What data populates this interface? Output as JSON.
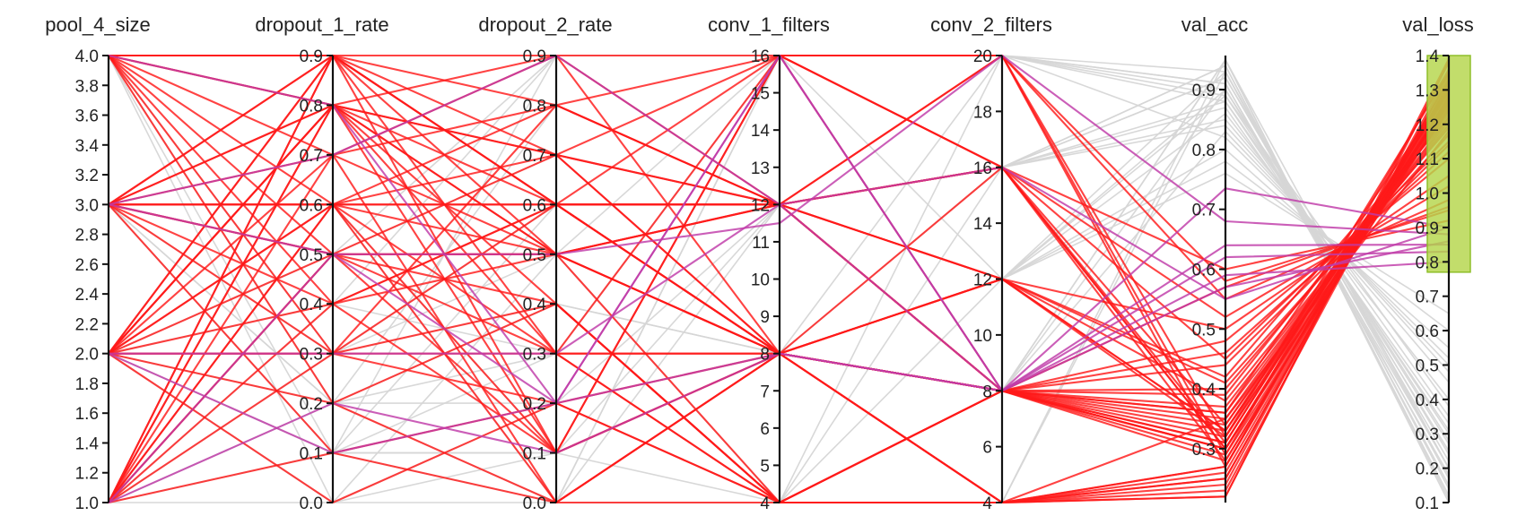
{
  "chart_data": {
    "type": "parallel_coordinates",
    "brushed_axis": "val_loss",
    "brush_range": [
      0.77,
      1.4
    ],
    "colors": {
      "inactive": "#d6d6d6",
      "highlight_red": "#ff1a1a",
      "highlight_magenta": "#c03aa8",
      "brush_fill": "#b5d64a",
      "brush_stroke": "#8fbf2a",
      "axis": "#111111"
    },
    "axes": [
      {
        "name": "pool_4_size",
        "range": [
          1.0,
          4.0
        ],
        "ticks": [
          "1.0",
          "1.2",
          "1.4",
          "1.6",
          "1.8",
          "2.0",
          "2.2",
          "2.4",
          "2.6",
          "2.8",
          "3.0",
          "3.2",
          "3.4",
          "3.6",
          "3.8",
          "4.0"
        ]
      },
      {
        "name": "dropout_1_rate",
        "range": [
          0.0,
          0.9
        ],
        "ticks": [
          "0.0",
          "0.1",
          "0.2",
          "0.3",
          "0.4",
          "0.5",
          "0.6",
          "0.7",
          "0.8",
          "0.9"
        ]
      },
      {
        "name": "dropout_2_rate",
        "range": [
          0.0,
          0.9
        ],
        "ticks": [
          "0.0",
          "0.1",
          "0.2",
          "0.3",
          "0.4",
          "0.5",
          "0.6",
          "0.7",
          "0.8",
          "0.9"
        ]
      },
      {
        "name": "conv_1_filters",
        "range": [
          4,
          16
        ],
        "ticks": [
          "4",
          "5",
          "6",
          "7",
          "8",
          "9",
          "10",
          "11",
          "12",
          "13",
          "14",
          "15",
          "16"
        ]
      },
      {
        "name": "conv_2_filters",
        "range": [
          4,
          20
        ],
        "ticks": [
          "4",
          "6",
          "8",
          "10",
          "12",
          "14",
          "16",
          "18",
          "20"
        ]
      },
      {
        "name": "val_acc",
        "range": [
          0.21,
          0.957
        ],
        "ticks": [
          "0.3",
          "0.4",
          "0.5",
          "0.6",
          "0.7",
          "0.8",
          "0.9"
        ]
      },
      {
        "name": "val_loss",
        "range": [
          0.1,
          1.4
        ],
        "ticks": [
          "0.1",
          "0.2",
          "0.3",
          "0.4",
          "0.5",
          "0.6",
          "0.7",
          "0.8",
          "0.9",
          "1.0",
          "1.1",
          "1.2",
          "1.3",
          "1.4"
        ]
      }
    ],
    "lines": [
      {
        "values": [
          4,
          0.8,
          0.6,
          8,
          8,
          0.36,
          1.3
        ]
      },
      {
        "values": [
          4,
          0.6,
          0.5,
          12,
          16,
          0.28,
          1.28
        ]
      },
      {
        "values": [
          4,
          0.9,
          0.1,
          16,
          20,
          0.32,
          1.35
        ]
      },
      {
        "values": [
          4,
          0.5,
          0.3,
          4,
          4,
          0.25,
          1.32
        ]
      },
      {
        "values": [
          4,
          0.8,
          0.7,
          8,
          12,
          0.42,
          1.22
        ]
      },
      {
        "values": [
          4,
          0.2,
          0.4,
          4,
          8,
          0.3,
          1.25
        ]
      },
      {
        "values": [
          4,
          0.7,
          0.0,
          8,
          4,
          0.22,
          1.38
        ]
      },
      {
        "values": [
          4,
          0.3,
          0.8,
          12,
          8,
          0.35,
          1.18
        ]
      },
      {
        "values": [
          4,
          0.9,
          0.6,
          16,
          16,
          0.31,
          1.3
        ]
      },
      {
        "values": [
          3,
          0.6,
          0.6,
          12,
          12,
          0.38,
          1.2
        ]
      },
      {
        "values": [
          3,
          0.9,
          0.5,
          8,
          8,
          0.3,
          1.27
        ]
      },
      {
        "values": [
          3,
          0.8,
          0.3,
          4,
          4,
          0.27,
          1.33
        ]
      },
      {
        "values": [
          3,
          0.5,
          0.7,
          12,
          16,
          0.45,
          1.15
        ]
      },
      {
        "values": [
          3,
          0.4,
          0.1,
          8,
          8,
          0.33,
          1.29
        ]
      },
      {
        "values": [
          3,
          0.7,
          0.9,
          16,
          20,
          0.58,
          0.95
        ]
      },
      {
        "values": [
          3,
          0.3,
          0.4,
          4,
          8,
          0.29,
          1.26
        ]
      },
      {
        "values": [
          3,
          0.1,
          0.2,
          8,
          4,
          0.24,
          1.35
        ]
      },
      {
        "values": [
          3,
          0.6,
          0.8,
          12,
          12,
          0.5,
          1.05
        ]
      },
      {
        "values": [
          3,
          0.8,
          0.5,
          8,
          8,
          0.37,
          1.21
        ]
      },
      {
        "values": [
          2,
          0.9,
          0.6,
          12,
          16,
          0.34,
          1.24
        ]
      },
      {
        "values": [
          2,
          0.8,
          0.7,
          8,
          8,
          0.4,
          1.19
        ]
      },
      {
        "values": [
          2,
          0.7,
          0.5,
          4,
          4,
          0.26,
          1.31
        ]
      },
      {
        "values": [
          2,
          0.6,
          0.3,
          8,
          12,
          0.32,
          1.27
        ]
      },
      {
        "values": [
          2,
          0.5,
          0.1,
          16,
          20,
          0.29,
          1.36
        ]
      },
      {
        "values": [
          2,
          0.3,
          0.3,
          8,
          8,
          0.39,
          1.23
        ]
      },
      {
        "values": [
          2,
          0.4,
          0.6,
          12,
          8,
          0.48,
          1.1
        ]
      },
      {
        "values": [
          2,
          0.0,
          0.2,
          4,
          4,
          0.23,
          1.34
        ]
      },
      {
        "values": [
          2,
          0.2,
          0.0,
          8,
          8,
          0.31,
          1.3
        ]
      },
      {
        "values": [
          2,
          0.9,
          0.8,
          12,
          16,
          0.6,
          0.92
        ]
      },
      {
        "values": [
          2,
          0.8,
          0.4,
          4,
          8,
          0.28,
          1.29
        ]
      },
      {
        "values": [
          1,
          0.9,
          0.6,
          8,
          8,
          0.36,
          1.22
        ]
      },
      {
        "values": [
          1,
          0.8,
          0.5,
          12,
          12,
          0.33,
          1.25
        ]
      },
      {
        "values": [
          1,
          0.7,
          0.8,
          16,
          16,
          0.52,
          1.02
        ]
      },
      {
        "values": [
          1,
          0.6,
          0.1,
          8,
          4,
          0.27,
          1.33
        ]
      },
      {
        "values": [
          1,
          0.5,
          0.4,
          4,
          8,
          0.3,
          1.28
        ]
      },
      {
        "values": [
          1,
          0.4,
          0.6,
          8,
          12,
          0.41,
          1.17
        ]
      },
      {
        "values": [
          1,
          0.8,
          0.9,
          12,
          20,
          0.55,
          0.98
        ]
      },
      {
        "values": [
          1,
          0.3,
          0.2,
          4,
          4,
          0.25,
          1.32
        ]
      },
      {
        "values": [
          1,
          0.1,
          0.0,
          8,
          8,
          0.34,
          1.26
        ]
      },
      {
        "values": [
          1,
          0.9,
          0.3,
          16,
          16,
          0.3,
          1.3
        ]
      },
      {
        "values": [
          4,
          0.9,
          0.7,
          12,
          8,
          0.44,
          1.14
        ]
      },
      {
        "values": [
          3,
          0.9,
          0.9,
          8,
          8,
          0.57,
          0.96
        ]
      },
      {
        "values": [
          2,
          0.6,
          0.6,
          8,
          4,
          0.35,
          1.24
        ]
      },
      {
        "values": [
          1,
          0.5,
          0.5,
          12,
          8,
          0.32,
          1.27
        ]
      },
      {
        "values": [
          3,
          0.6,
          0.0,
          4,
          4,
          0.22,
          1.39
        ]
      },
      {
        "values": [
          2,
          0.8,
          0.1,
          8,
          8,
          0.31,
          1.31
        ]
      },
      {
        "values": [
          1,
          0.6,
          0.7,
          16,
          8,
          0.46,
          1.12
        ]
      },
      {
        "values": [
          4,
          0.4,
          0.5,
          8,
          16,
          0.3,
          1.28
        ]
      },
      {
        "values": [
          2,
          0.3,
          0.6,
          12,
          20,
          0.27,
          1.3
        ]
      },
      {
        "values": [
          3,
          0.5,
          0.5,
          8,
          12,
          0.33,
          1.26
        ]
      },
      {
        "values": [
          4,
          0.8,
          0.2,
          16,
          8,
          0.735,
          0.9
        ]
      },
      {
        "values": [
          2,
          0.1,
          0.2,
          8,
          8,
          0.62,
          0.83
        ]
      },
      {
        "values": [
          1,
          0.2,
          0.1,
          8,
          8,
          0.57,
          0.86
        ]
      },
      {
        "values": [
          3,
          0.5,
          0.5,
          11.5,
          20,
          0.68,
          0.88
        ]
      },
      {
        "values": [
          1,
          0.5,
          0.2,
          16,
          8,
          0.59,
          0.8
        ]
      },
      {
        "values": [
          2,
          0.3,
          0.3,
          12,
          8,
          0.64,
          0.85
        ]
      },
      {
        "values": [
          3,
          0.7,
          0.9,
          12,
          16,
          0.55,
          0.9
        ]
      },
      {
        "values": [
          2,
          0.0,
          0.0,
          4,
          4,
          0.95,
          0.2
        ]
      },
      {
        "values": [
          1,
          0.1,
          0.1,
          4,
          4,
          0.93,
          0.15
        ]
      },
      {
        "values": [
          3,
          0.2,
          0.2,
          8,
          8,
          0.9,
          0.25
        ]
      },
      {
        "values": [
          2,
          0.1,
          0.3,
          16,
          16,
          0.92,
          0.22
        ]
      },
      {
        "values": [
          4,
          0.0,
          0.1,
          12,
          12,
          0.89,
          0.3
        ]
      },
      {
        "values": [
          1,
          0.3,
          0.4,
          8,
          20,
          0.91,
          0.18
        ]
      },
      {
        "values": [
          3,
          0.1,
          0.2,
          4,
          16,
          0.94,
          0.12
        ]
      },
      {
        "values": [
          2,
          0.4,
          0.9,
          16,
          20,
          0.88,
          0.35
        ]
      },
      {
        "values": [
          1,
          0.2,
          0.8,
          12,
          12,
          0.86,
          0.4
        ]
      },
      {
        "values": [
          3,
          0.6,
          0.1,
          8,
          8,
          0.95,
          0.1
        ]
      },
      {
        "values": [
          2,
          0.1,
          0.6,
          12,
          16,
          0.85,
          0.45
        ]
      },
      {
        "values": [
          4,
          0.3,
          0.3,
          16,
          20,
          0.9,
          0.28
        ]
      },
      {
        "values": [
          1,
          0.0,
          0.5,
          4,
          8,
          0.83,
          0.5
        ]
      },
      {
        "values": [
          2,
          0.5,
          0.9,
          12,
          12,
          0.8,
          0.55
        ]
      },
      {
        "values": [
          3,
          0.1,
          0.0,
          16,
          20,
          0.93,
          0.2
        ]
      },
      {
        "values": [
          1,
          0.4,
          0.3,
          8,
          16,
          0.87,
          0.33
        ]
      },
      {
        "values": [
          2,
          0.2,
          0.4,
          4,
          12,
          0.78,
          0.6
        ]
      },
      {
        "values": [
          4,
          0.1,
          0.9,
          12,
          16,
          0.92,
          0.24
        ]
      },
      {
        "values": [
          1,
          0.6,
          0.0,
          16,
          20,
          0.89,
          0.38
        ]
      },
      {
        "values": [
          3,
          0.3,
          0.6,
          8,
          12,
          0.76,
          0.65
        ]
      },
      {
        "values": [
          2,
          0.0,
          0.2,
          12,
          16,
          0.94,
          0.14
        ]
      },
      {
        "values": [
          1,
          0.1,
          0.1,
          8,
          12,
          0.9,
          0.27
        ]
      },
      {
        "values": [
          2,
          0.3,
          0.5,
          16,
          16,
          0.84,
          0.48
        ]
      },
      {
        "values": [
          3,
          0.2,
          0.3,
          4,
          20,
          0.91,
          0.2
        ]
      },
      {
        "values": [
          1,
          0.5,
          0.7,
          12,
          20,
          0.82,
          0.52
        ]
      },
      {
        "values": [
          4,
          0.2,
          0.4,
          8,
          16,
          0.88,
          0.31
        ]
      },
      {
        "values": [
          2,
          0.1,
          0.1,
          16,
          12,
          0.93,
          0.17
        ]
      },
      {
        "values": [
          1,
          0.2,
          0.0,
          12,
          8,
          0.95,
          0.11
        ]
      }
    ]
  }
}
